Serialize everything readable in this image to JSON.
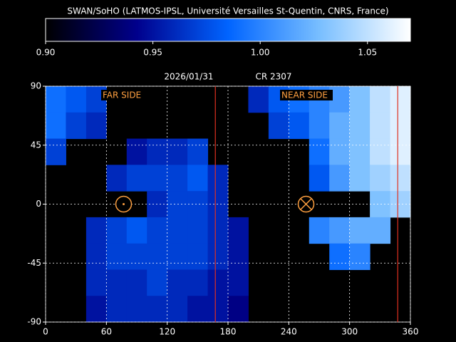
{
  "chart_data": {
    "type": "heatmap",
    "title": "SWAN/SoHO (LATMOS-IPSL, Université Versailles St-Quentin, CNRS, France)",
    "date": "2026/01/31",
    "rotation": "CR 2307",
    "annotations": [
      "FAR SIDE",
      "NEAR SIDE"
    ],
    "colormap": [
      "#000000",
      "#00008c",
      "#0064ff",
      "#78beff",
      "#ffffff"
    ],
    "zlim": [
      0.9,
      1.07
    ],
    "zticks": [
      {
        "value": 0.9,
        "label": "0.90"
      },
      {
        "value": 0.95,
        "label": "0.95"
      },
      {
        "value": 1.0,
        "label": "1.00"
      },
      {
        "value": 1.05,
        "label": "1.05"
      }
    ],
    "xlim": [
      0,
      360
    ],
    "xticks": [
      0,
      60,
      120,
      180,
      240,
      300,
      360
    ],
    "ylim": [
      -90,
      90
    ],
    "yticks": [
      90,
      45,
      0,
      -45,
      -90
    ],
    "grid": true,
    "x": [
      10,
      30,
      50,
      70,
      90,
      110,
      130,
      150,
      170,
      190,
      210,
      230,
      250,
      270,
      290,
      310,
      330,
      350
    ],
    "y": [
      80,
      60,
      40,
      20,
      0,
      -20,
      -40,
      -60,
      -80
    ],
    "values": [
      [
        0.99,
        0.98,
        0.97,
        null,
        null,
        null,
        null,
        null,
        null,
        null,
        0.96,
        0.98,
        0.99,
        1.0,
        1.01,
        1.03,
        1.05,
        1.06
      ],
      [
        0.99,
        0.97,
        0.96,
        null,
        null,
        null,
        null,
        null,
        null,
        null,
        null,
        0.97,
        0.98,
        1.0,
        1.02,
        1.03,
        1.05,
        1.06
      ],
      [
        0.97,
        null,
        null,
        null,
        0.95,
        0.96,
        0.96,
        0.97,
        null,
        null,
        null,
        null,
        null,
        0.99,
        1.02,
        1.03,
        1.05,
        1.06
      ],
      [
        null,
        null,
        null,
        0.96,
        0.97,
        0.97,
        0.97,
        0.98,
        0.96,
        null,
        null,
        null,
        null,
        0.98,
        1.01,
        1.03,
        1.04,
        1.05
      ],
      [
        null,
        null,
        null,
        null,
        null,
        0.96,
        0.97,
        0.97,
        0.96,
        null,
        null,
        null,
        null,
        null,
        null,
        null,
        1.03,
        1.04
      ],
      [
        null,
        null,
        0.96,
        0.97,
        0.98,
        0.97,
        0.97,
        0.97,
        0.96,
        0.95,
        null,
        null,
        null,
        1.0,
        1.01,
        1.02,
        1.02,
        null
      ],
      [
        null,
        null,
        0.96,
        0.97,
        0.97,
        0.97,
        0.97,
        0.97,
        0.96,
        0.95,
        null,
        null,
        null,
        null,
        0.99,
        1.0,
        null,
        null
      ],
      [
        null,
        null,
        0.96,
        0.96,
        0.96,
        0.97,
        0.96,
        0.96,
        0.95,
        0.95,
        null,
        null,
        null,
        null,
        null,
        null,
        null,
        null
      ],
      [
        null,
        null,
        0.95,
        0.96,
        0.96,
        0.96,
        0.96,
        0.95,
        0.95,
        0.94,
        null,
        null,
        null,
        null,
        null,
        null,
        null,
        null
      ]
    ],
    "markers": {
      "lines": [
        167.5,
        347.5
      ],
      "far_side": [
        77,
        0
      ],
      "near_side": [
        257,
        0
      ]
    },
    "marker_colors": {
      "lines": "#e03020",
      "circles": "#ffa040"
    }
  }
}
